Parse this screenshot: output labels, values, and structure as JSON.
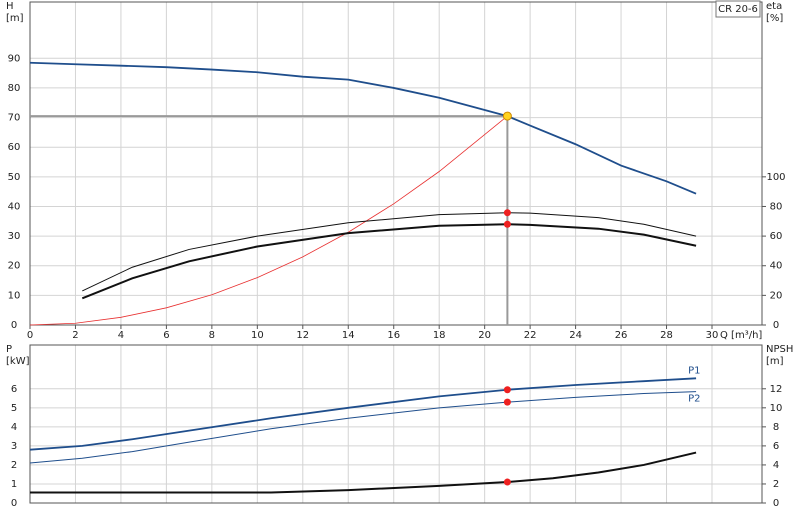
{
  "chart_data": [
    {
      "type": "line",
      "title": "CR 20-6",
      "ylabel": "H",
      "yunit": "[m]",
      "y2label": "eta",
      "y2unit": "[%]",
      "xlabel": "Q [m³/h]",
      "xlim": [
        0,
        32.2
      ],
      "xticks": [
        0,
        2,
        4,
        6,
        8,
        10,
        12,
        14,
        16,
        18,
        20,
        22,
        24,
        26,
        28,
        30
      ],
      "ylim": [
        0,
        109
      ],
      "yticks": [
        0,
        10,
        20,
        30,
        40,
        50,
        60,
        70,
        80,
        90
      ],
      "y2lim": [
        0,
        218
      ],
      "y2ticks": [
        0,
        20,
        40,
        60,
        80,
        100
      ],
      "grid": true,
      "duty_q": 21,
      "series": [
        {
          "color": "#1f4e8c",
          "line_width": 1.8,
          "x": [
            0,
            2,
            4,
            6,
            8,
            10,
            12,
            14,
            16,
            18,
            21,
            22,
            24,
            26,
            28,
            29.3
          ],
          "values": [
            88.5,
            88,
            87.5,
            87,
            86.2,
            85.3,
            83.8,
            82.8,
            80,
            76.7,
            70.5,
            67.3,
            61,
            53.8,
            48.5,
            44.3
          ]
        },
        {
          "color": "#e83030",
          "line_width": 0.8,
          "x": [
            0,
            2,
            4,
            6,
            8,
            10,
            12,
            14,
            16,
            18,
            21
          ],
          "values": [
            0,
            0.6,
            2.6,
            5.8,
            10.2,
            16,
            23,
            31.3,
            40.9,
            51.8,
            70.5
          ]
        },
        {
          "color": "#111111",
          "line_width": 1,
          "axis": "y2",
          "x": [
            2.3,
            4.5,
            7,
            10,
            14,
            18,
            21,
            22,
            25,
            27,
            29.3
          ],
          "values": [
            23,
            39,
            51,
            60,
            69,
            74.5,
            75.8,
            75.5,
            72.5,
            68,
            60
          ]
        },
        {
          "color": "#111111",
          "line_width": 2,
          "axis": "y2",
          "x": [
            2.3,
            4.5,
            7,
            10,
            14,
            18,
            21,
            22,
            25,
            27,
            29.3
          ],
          "values": [
            18,
            31.5,
            43,
            53,
            62,
            67,
            68,
            67.6,
            65,
            61,
            53.5
          ]
        }
      ]
    },
    {
      "type": "line",
      "ylabel": "P",
      "yunit": "[kW]",
      "y2label": "NPSH",
      "y2unit": "[m]",
      "xlim": [
        0,
        32.2
      ],
      "ylim": [
        0,
        8.3
      ],
      "yticks": [
        0,
        1,
        2,
        3,
        4,
        5,
        6
      ],
      "y2lim": [
        0,
        16.6
      ],
      "y2ticks": [
        0,
        2,
        4,
        6,
        8,
        10,
        12
      ],
      "grid": true,
      "series": [
        {
          "name": "P1",
          "color": "#1f4e8c",
          "line_width": 1.8,
          "x": [
            0,
            2.3,
            4.5,
            7,
            10.6,
            14,
            18,
            21,
            24,
            27,
            29.3
          ],
          "values": [
            2.8,
            3.0,
            3.35,
            3.8,
            4.45,
            5.0,
            5.6,
            5.95,
            6.2,
            6.4,
            6.55
          ]
        },
        {
          "name": "P2",
          "color": "#1f4e8c",
          "line_width": 1,
          "x": [
            0,
            2.3,
            4.5,
            7,
            10.6,
            14,
            18,
            21,
            24,
            27,
            29.3
          ],
          "values": [
            2.1,
            2.35,
            2.7,
            3.2,
            3.9,
            4.45,
            5.0,
            5.3,
            5.55,
            5.75,
            5.85
          ]
        },
        {
          "color": "#111111",
          "line_width": 2,
          "axis": "y2",
          "x": [
            0,
            10.6,
            14,
            18,
            21,
            23,
            25,
            27,
            29.3
          ],
          "values": [
            1.1,
            1.1,
            1.35,
            1.8,
            2.2,
            2.6,
            3.2,
            4.0,
            5.3
          ]
        }
      ]
    }
  ]
}
